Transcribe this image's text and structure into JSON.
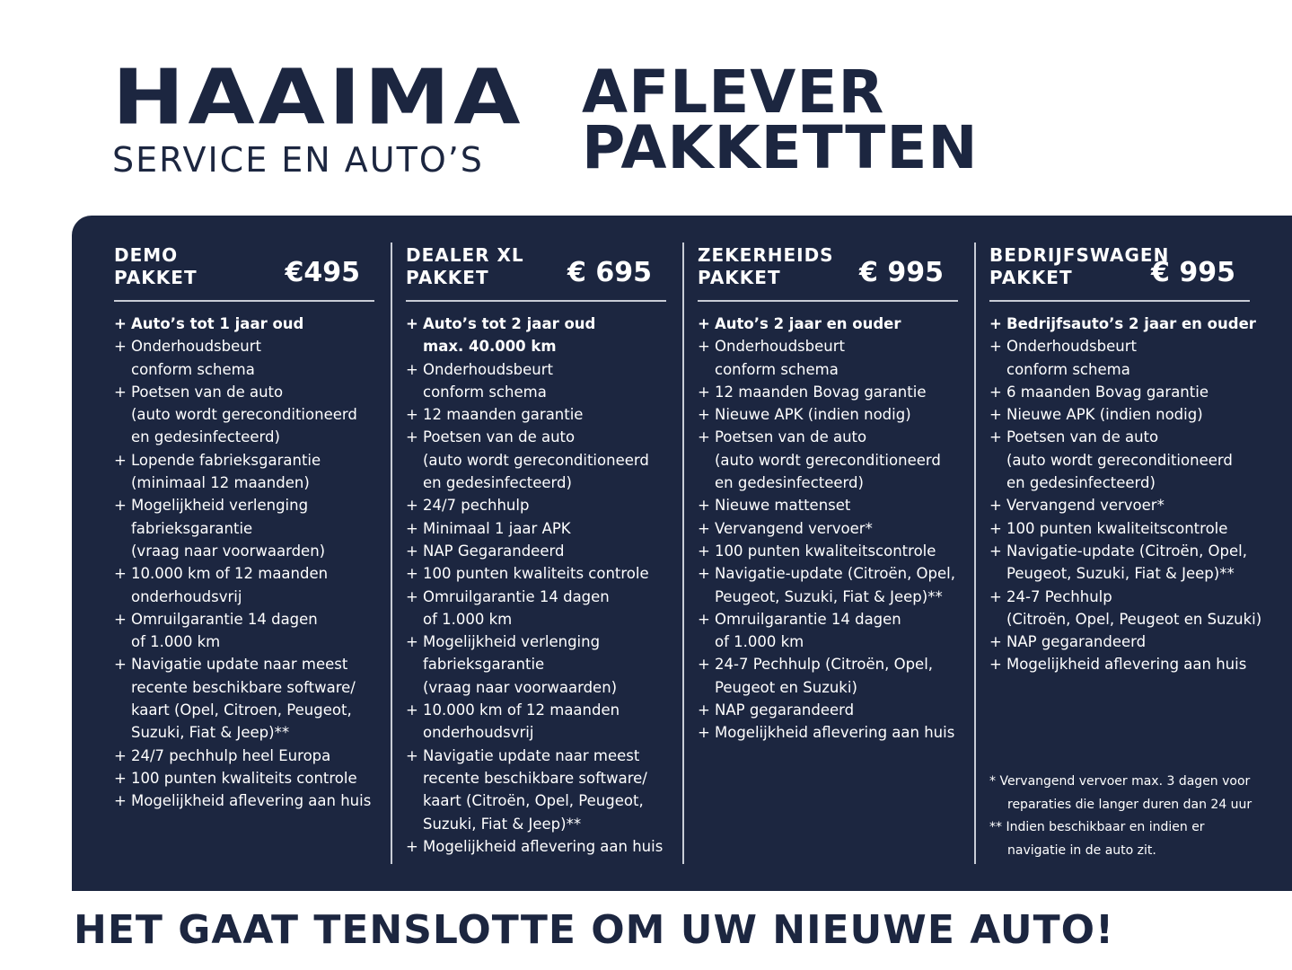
{
  "brand": {
    "name": "HAAIMA",
    "subtitle": "SERVICE EN AUTO’S"
  },
  "headline": {
    "line1": "AFLEVER",
    "line2": "PAKKETTEN"
  },
  "colors": {
    "navy": "#1c2640",
    "white": "#ffffff"
  },
  "packages": [
    {
      "title1": "DEMO",
      "title2": "PAKKET",
      "price": "€495",
      "items": [
        [
          "Auto’s tot 1 jaar oud"
        ],
        [
          "Onderhoudsbeurt",
          "conform schema"
        ],
        [
          "Poetsen van de auto",
          "(auto wordt gereconditioneerd",
          "en gedesinfecteerd)"
        ],
        [
          "Lopende fabrieksgarantie",
          "(minimaal 12 maanden)"
        ],
        [
          "Mogelijkheid verlenging",
          "fabrieksgarantie",
          "(vraag naar voorwaarden)"
        ],
        [
          "10.000 km of 12 maanden",
          "onderhoudsvrij"
        ],
        [
          "Omruilgarantie 14 dagen",
          "of 1.000 km"
        ],
        [
          "Navigatie update naar meest",
          "recente beschikbare software/",
          "kaart (Opel, Citroen,  Peugeot,",
          "Suzuki, Fiat & Jeep)**"
        ],
        [
          "24/7 pechhulp heel Europa"
        ],
        [
          "100 punten kwaliteits controle"
        ],
        [
          "Mogelijkheid aflevering aan huis"
        ]
      ]
    },
    {
      "title1": "DEALER XL",
      "title2": "PAKKET",
      "price": "€ 695",
      "items": [
        [
          "Auto’s tot 2 jaar oud",
          "max. 40.000 km"
        ],
        [
          "Onderhoudsbeurt",
          "conform schema"
        ],
        [
          "12 maanden garantie"
        ],
        [
          "Poetsen van de auto",
          "(auto wordt gereconditioneerd",
          "en gedesinfecteerd)"
        ],
        [
          "24/7 pechhulp"
        ],
        [
          "Minimaal 1 jaar APK"
        ],
        [
          "NAP Gegarandeerd"
        ],
        [
          "100 punten kwaliteits controle"
        ],
        [
          "Omruilgarantie 14 dagen",
          "of 1.000 km"
        ],
        [
          "Mogelijkheid verlenging",
          "fabrieksgarantie",
          "(vraag naar voorwaarden)"
        ],
        [
          "10.000 km of 12 maanden",
          "onderhoudsvrij"
        ],
        [
          "Navigatie update naar meest",
          "recente beschikbare software/",
          "kaart (Citroën, Opel, Peugeot,",
          "Suzuki, Fiat & Jeep)**"
        ],
        [
          "Mogelijkheid aflevering aan huis"
        ]
      ]
    },
    {
      "title1": "ZEKERHEIDS",
      "title2": "PAKKET",
      "price": "€ 995",
      "items": [
        [
          "Auto’s 2 jaar en ouder"
        ],
        [
          "Onderhoudsbeurt",
          "conform schema"
        ],
        [
          "12 maanden Bovag garantie"
        ],
        [
          "Nieuwe APK (indien nodig)"
        ],
        [
          "Poetsen van de auto",
          "(auto wordt gereconditioneerd",
          "en gedesinfecteerd)"
        ],
        [
          "Nieuwe mattenset"
        ],
        [
          "Vervangend vervoer*"
        ],
        [
          "100 punten kwaliteitscontrole"
        ],
        [
          "Navigatie-update (Citroën, Opel,",
          "Peugeot, Suzuki, Fiat & Jeep)**"
        ],
        [
          "Omruilgarantie 14 dagen",
          "of 1.000 km"
        ],
        [
          "24-7 Pechhulp (Citroën, Opel,",
          "Peugeot en Suzuki)"
        ],
        [
          "NAP gegarandeerd"
        ],
        [
          "Mogelijkheid aflevering aan huis"
        ]
      ]
    },
    {
      "title1": "BEDRIJFSWAGEN",
      "title2": "PAKKET",
      "price": "€ 995",
      "items": [
        [
          "Bedrijfsauto’s 2 jaar en ouder"
        ],
        [
          "Onderhoudsbeurt",
          "conform schema"
        ],
        [
          "6 maanden Bovag garantie"
        ],
        [
          "Nieuwe APK (indien nodig)"
        ],
        [
          "Poetsen van de auto",
          "(auto wordt gereconditioneerd",
          "en gedesinfecteerd)"
        ],
        [
          "Vervangend vervoer*"
        ],
        [
          "100 punten kwaliteitscontrole"
        ],
        [
          "Navigatie-update (Citroën, Opel,",
          "Peugeot, Suzuki, Fiat & Jeep)**"
        ],
        [
          "24-7 Pechhulp",
          "(Citroën, Opel, Peugeot en Suzuki)"
        ],
        [
          "NAP gegarandeerd"
        ],
        [
          "Mogelijkheid aflevering aan huis"
        ]
      ]
    }
  ],
  "footnotes": {
    "note1_line1": "* Vervangend vervoer max. 3 dagen voor",
    "note1_line2": "reparaties die langer duren dan 24 uur",
    "note2_line1": "** Indien beschikbaar en indien er",
    "note2_line2": "navigatie in de auto zit."
  },
  "slogan": "HET GAAT TENSLOTTE OM UW NIEUWE AUTO!"
}
